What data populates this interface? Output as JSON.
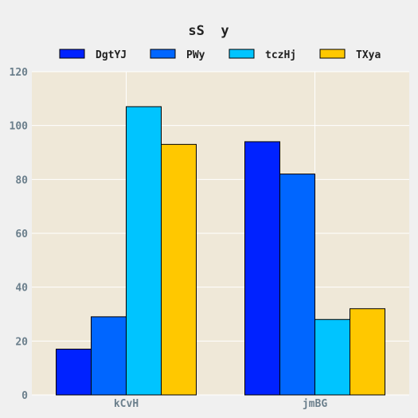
{
  "chart_data": {
    "type": "bar",
    "title": "sS  y",
    "xlabel": "",
    "ylabel": "",
    "categories": [
      "kCvH",
      "jmBG"
    ],
    "series": [
      {
        "name": "DgtYJ",
        "values": [
          17,
          94
        ],
        "color": "#0022ff"
      },
      {
        "name": "PWy",
        "values": [
          29,
          82
        ],
        "color": "#0066ff"
      },
      {
        "name": "tczHj",
        "values": [
          107,
          28
        ],
        "color": "#00c4ff"
      },
      {
        "name": "TXya",
        "values": [
          93,
          32
        ],
        "color": "#ffc800"
      }
    ],
    "ylim": [
      0,
      120
    ],
    "yticks": [
      "0",
      "20",
      "40",
      "60",
      "80",
      "100",
      "120"
    ],
    "grid": true,
    "legend_position": "top",
    "plot_background": "#efe8d8",
    "page_background": "#f0f0f0"
  }
}
